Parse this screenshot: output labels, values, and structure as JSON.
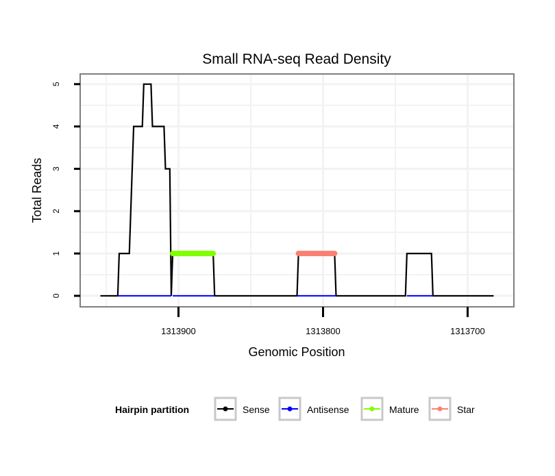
{
  "chart_data": {
    "type": "line",
    "title": "Small RNA-seq Read Density",
    "xlabel": "Genomic Position",
    "ylabel": "Total Reads",
    "xlim": [
      1313968,
      1313668
    ],
    "x_reversed": true,
    "ylim": [
      -0.26,
      5.24
    ],
    "xticks": [
      1313900,
      1313800,
      1313700
    ],
    "xtick_labels": [
      "1313900",
      "1313800",
      "1313700"
    ],
    "yticks": [
      0,
      1,
      2,
      3,
      4,
      5
    ],
    "ytick_labels": [
      "0",
      "1",
      "2",
      "3",
      "4",
      "5"
    ],
    "grid": true,
    "legend": {
      "title": "Hairpin partition",
      "placement": "bottom",
      "entries": [
        "Sense",
        "Antisense",
        "Mature",
        "Star"
      ]
    },
    "series": [
      {
        "name": "Sense",
        "color": "#000000",
        "points": [
          [
            1313954,
            0
          ],
          [
            1313942,
            0
          ],
          [
            1313941,
            1
          ],
          [
            1313934,
            1
          ],
          [
            1313933,
            2
          ],
          [
            1313931,
            4
          ],
          [
            1313925,
            4
          ],
          [
            1313924,
            5
          ],
          [
            1313919,
            5
          ],
          [
            1313918,
            4
          ],
          [
            1313910,
            4
          ],
          [
            1313909,
            3
          ],
          [
            1313906,
            3
          ],
          [
            1313905,
            0
          ],
          [
            1313904,
            1
          ],
          [
            1313876,
            1
          ],
          [
            1313875,
            0
          ],
          [
            1313818,
            0
          ],
          [
            1313817,
            1
          ],
          [
            1313792,
            1
          ],
          [
            1313791,
            0
          ],
          [
            1313743,
            0
          ],
          [
            1313742,
            1
          ],
          [
            1313725,
            1
          ],
          [
            1313724,
            0
          ],
          [
            1313682,
            0
          ]
        ]
      },
      {
        "name": "Antisense",
        "color": "#0000ff",
        "segments": [
          [
            1313942,
            1313905
          ],
          [
            1313904,
            1313875
          ],
          [
            1313818,
            1313791
          ],
          [
            1313742,
            1313724
          ]
        ],
        "value": 0
      },
      {
        "name": "Mature",
        "color": "#7fff00",
        "range": [
          1313904,
          1313876
        ],
        "value": 1
      },
      {
        "name": "Star",
        "color": "#fa8072",
        "range": [
          1313817,
          1313792
        ],
        "value": 1
      }
    ]
  }
}
